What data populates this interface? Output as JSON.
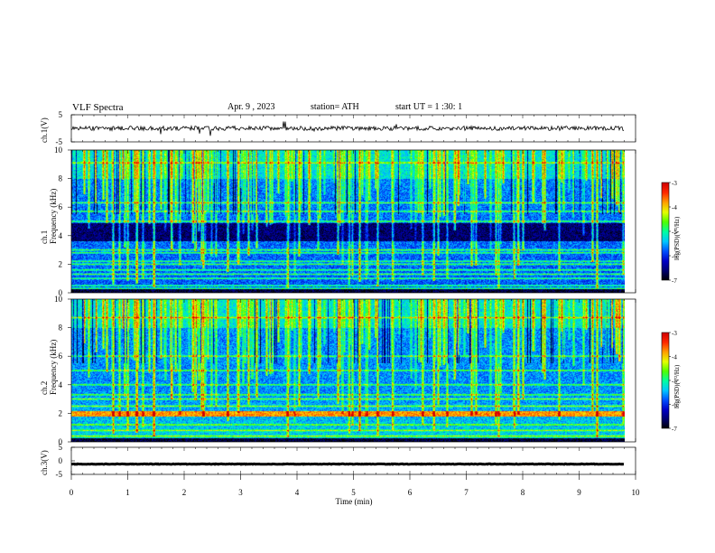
{
  "header": {
    "title": "VLF Spectra",
    "date": "Apr. 9 , 2023",
    "station": "station= ATH",
    "start": "start UT = 1 :30: 1"
  },
  "colors": {
    "colormap": [
      "#000000",
      "#00006e",
      "#0000c8",
      "#0050ff",
      "#00c8ff",
      "#00ffa0",
      "#50ff00",
      "#e6ff00",
      "#ffa000",
      "#ff2800",
      "#d20000",
      "#ffffff"
    ],
    "trace": "#000000"
  },
  "chart_data": {
    "type": "heatmap",
    "x_axis": {
      "label": "Time (min)",
      "range": [
        0,
        10
      ],
      "ticks": [
        "0",
        "1",
        "2",
        "3",
        "4",
        "5",
        "6",
        "7",
        "8",
        "9",
        "10"
      ],
      "data_end": 9.8
    },
    "panels": [
      {
        "name": "ch.1(V)",
        "kind": "waveform",
        "ylabel": "ch.1(V)",
        "ylim": [
          -5,
          5
        ],
        "ticks": [
          "5",
          "-5"
        ],
        "level": 0.0,
        "amplitude": 0.8
      },
      {
        "name": "ch.1",
        "kind": "spectrogram",
        "ylabel": "ch.1\nFrequency (kHz)",
        "ylim": [
          0,
          10
        ],
        "ticks": [
          "0",
          "2",
          "4",
          "6",
          "8",
          "10"
        ],
        "quiet_band_khz": [
          3.6,
          4.9
        ],
        "tone_lines_khz": [
          0.3,
          0.5,
          1.0,
          1.3,
          1.6,
          2.0,
          2.2,
          2.8,
          3.0,
          5.0,
          5.7,
          6.3,
          9.1
        ],
        "colorbar": {
          "label": "log(PSD)(V²/Hz)",
          "ticks": [
            "-3",
            "-4",
            "-5",
            "-6",
            "-7"
          ],
          "range": [
            -7,
            -3
          ]
        }
      },
      {
        "name": "ch.2",
        "kind": "spectrogram",
        "ylabel": "ch.2\nFrequency (kHz)",
        "ylim": [
          0,
          10
        ],
        "ticks": [
          "0",
          "2",
          "4",
          "6",
          "8",
          "10"
        ],
        "quiet_band_khz": [],
        "tone_lines_khz": [
          0.4,
          0.8,
          1.2,
          1.9,
          2.0,
          2.5,
          3.0,
          3.3,
          4.0,
          5.0,
          6.0,
          8.7
        ],
        "colorbar": {
          "label": "log(PSD)(V²/Hz)",
          "ticks": [
            "-3",
            "-4",
            "-5",
            "-6",
            "-7"
          ],
          "range": [
            -7,
            -3
          ]
        }
      },
      {
        "name": "ch.3(V)",
        "kind": "waveform",
        "ylabel": "ch.3(V)",
        "ylim": [
          -5,
          5
        ],
        "ticks": [
          "5",
          "0",
          "-5"
        ],
        "level": -1.2,
        "amplitude": 0.1
      }
    ]
  }
}
